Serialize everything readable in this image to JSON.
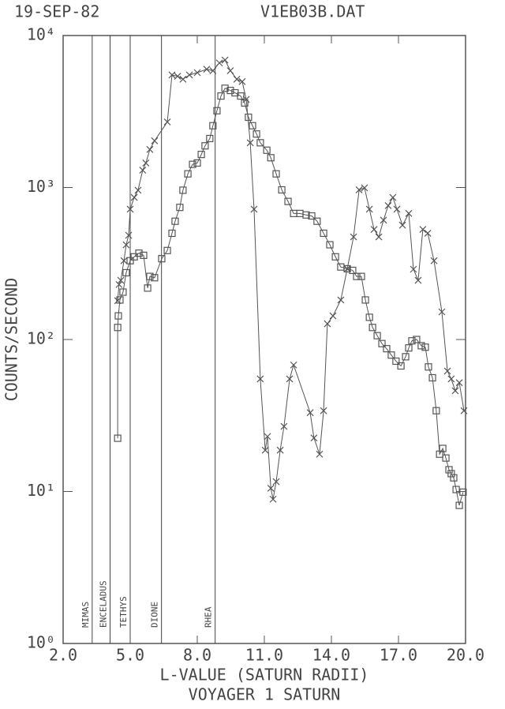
{
  "chart_data": {
    "type": "line",
    "header_left": "19-SEP-82",
    "header_right": "V1EB03B.DAT",
    "xlabel": "L-VALUE (SATURN RADII)",
    "subtitle": "VOYAGER 1 SATURN",
    "ylabel": "COUNTS/SECOND",
    "xlim": [
      2,
      20
    ],
    "ylim": [
      1,
      10000
    ],
    "ylog": true,
    "grid": false,
    "xticks": [
      {
        "value": 2,
        "label": "2.0"
      },
      {
        "value": 5,
        "label": "5.0"
      },
      {
        "value": 8,
        "label": "8.0"
      },
      {
        "value": 11,
        "label": "11.0"
      },
      {
        "value": 14,
        "label": "14.0"
      },
      {
        "value": 17,
        "label": "17.0"
      },
      {
        "value": 20,
        "label": "20.0"
      }
    ],
    "yticks": [
      {
        "value": 1,
        "label": "10⁰"
      },
      {
        "value": 10,
        "label": "10¹"
      },
      {
        "value": 100,
        "label": "10²"
      },
      {
        "value": 1000,
        "label": "10³"
      },
      {
        "value": 10000,
        "label": "10⁴"
      }
    ],
    "moons": [
      {
        "name": "MIMAS",
        "x": 3.3
      },
      {
        "name": "ENCELADUS",
        "x": 4.1
      },
      {
        "name": "TETHYS",
        "x": 5.0
      },
      {
        "name": "DIONE",
        "x": 6.4
      },
      {
        "name": "RHEA",
        "x": 8.8
      }
    ],
    "series": [
      {
        "marker": "cross",
        "color": "#555555",
        "x": [
          4.44,
          4.5,
          4.58,
          4.72,
          4.82,
          4.93,
          5.0,
          5.18,
          5.35,
          5.56,
          5.7,
          5.88,
          6.09,
          6.66,
          6.87,
          7.12,
          7.36,
          7.65,
          8.0,
          8.42,
          8.7,
          8.99,
          9.24,
          9.48,
          9.77,
          10.01,
          10.19,
          10.37,
          10.54,
          10.82,
          11.04,
          11.14,
          11.29,
          11.39,
          11.53,
          11.71,
          11.88,
          12.13,
          12.31,
          13.05,
          13.22,
          13.47,
          13.65,
          13.82,
          14.07,
          14.42,
          14.71,
          14.99,
          15.24,
          15.48,
          15.7,
          15.91,
          16.12,
          16.33,
          16.54,
          16.75,
          16.93,
          17.18,
          17.46,
          17.67,
          17.88,
          18.09,
          18.31,
          18.59,
          18.94,
          19.19,
          19.36,
          19.54,
          19.72,
          19.93
        ],
        "values": [
          180,
          230,
          245,
          330,
          420,
          485,
          720,
          860,
          960,
          1300,
          1450,
          1780,
          2030,
          2700,
          5500,
          5400,
          5160,
          5500,
          5700,
          6000,
          5870,
          6600,
          6900,
          5870,
          5160,
          4980,
          3800,
          1970,
          720,
          55,
          18.7,
          23,
          10.5,
          8.9,
          11.6,
          18.7,
          26.8,
          55,
          68,
          33,
          22.5,
          17.6,
          34,
          127,
          143,
          182,
          292,
          473,
          965,
          995,
          720,
          530,
          473,
          610,
          760,
          860,
          720,
          565,
          675,
          290,
          245,
          530,
          500,
          330,
          152,
          62,
          55,
          46,
          52,
          34
        ]
      },
      {
        "marker": "square",
        "color": "#555555",
        "x": [
          4.44,
          4.44,
          4.47,
          4.54,
          4.68,
          4.82,
          5.0,
          5.18,
          5.39,
          5.6,
          5.78,
          5.88,
          6.09,
          6.41,
          6.66,
          6.87,
          7.01,
          7.22,
          7.36,
          7.58,
          7.79,
          8.0,
          8.18,
          8.35,
          8.56,
          8.7,
          8.88,
          9.06,
          9.24,
          9.48,
          9.69,
          9.94,
          10.12,
          10.29,
          10.47,
          10.65,
          10.82,
          11.11,
          11.29,
          11.53,
          11.78,
          12.06,
          12.31,
          12.59,
          12.87,
          13.12,
          13.36,
          13.65,
          13.93,
          14.18,
          14.42,
          14.71,
          14.95,
          15.13,
          15.34,
          15.52,
          15.7,
          15.84,
          16.05,
          16.26,
          16.47,
          16.68,
          16.89,
          17.11,
          17.32,
          17.46,
          17.6,
          17.81,
          18.02,
          18.2,
          18.34,
          18.52,
          18.69,
          18.84,
          18.98,
          19.12,
          19.26,
          19.36,
          19.47,
          19.58,
          19.72,
          19.89
        ],
        "values": [
          22.4,
          120,
          143,
          182,
          205,
          275,
          330,
          350,
          370,
          358,
          218,
          260,
          255,
          340,
          385,
          500,
          600,
          740,
          960,
          1230,
          1420,
          1450,
          1650,
          1880,
          2100,
          2550,
          3200,
          4000,
          4500,
          4350,
          4200,
          4000,
          3600,
          2900,
          2550,
          2250,
          1970,
          1760,
          1570,
          1230,
          965,
          810,
          675,
          675,
          660,
          650,
          600,
          500,
          420,
          350,
          300,
          292,
          285,
          260,
          260,
          182,
          140,
          120,
          106,
          94,
          87,
          79,
          72,
          67,
          77,
          88,
          98,
          100,
          91,
          89,
          66,
          56,
          34,
          17.6,
          19.2,
          16.6,
          13.9,
          13.1,
          12.3,
          10.3,
          8.1,
          9.9
        ]
      }
    ]
  }
}
